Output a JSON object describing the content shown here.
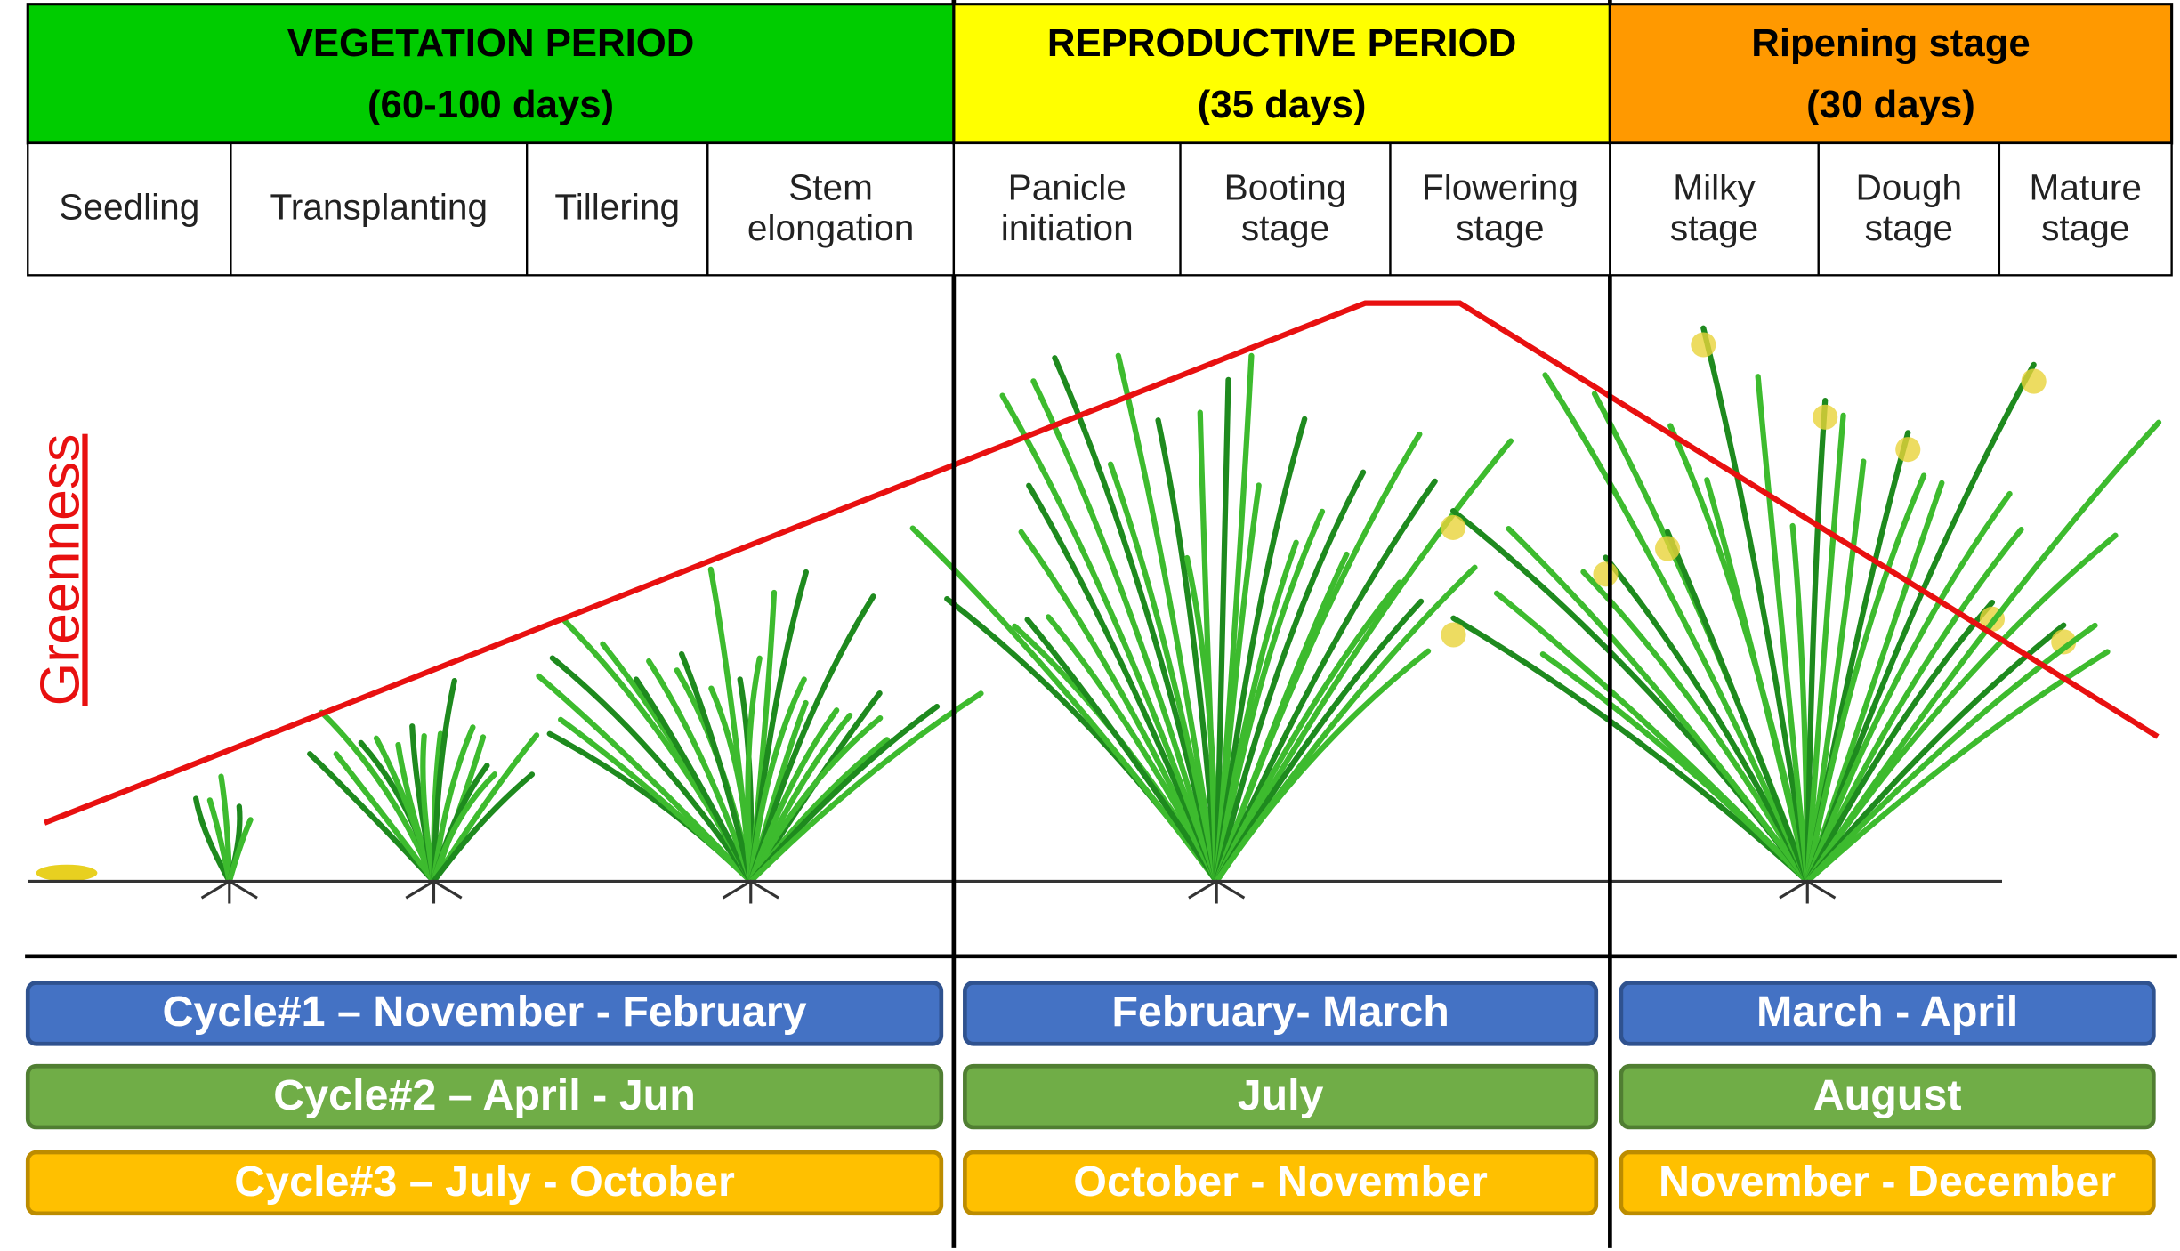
{
  "periods": [
    {
      "title": "VEGETATION PERIOD",
      "duration": "(60-100 days)",
      "stages": [
        [
          "Seedling"
        ],
        [
          "Transplanting"
        ],
        [
          "Tillering"
        ],
        [
          "Stem",
          "elongation"
        ]
      ]
    },
    {
      "title": "REPRODUCTIVE PERIOD",
      "duration": "(35 days)",
      "stages": [
        [
          "Panicle",
          "initiation"
        ],
        [
          "Booting",
          "stage"
        ],
        [
          "Flowering",
          "stage"
        ]
      ]
    },
    {
      "title": "Ripening stage",
      "duration": "(30 days)",
      "stages": [
        [
          "Milky",
          "stage"
        ],
        [
          "Dough",
          "stage"
        ],
        [
          "Mature",
          "stage"
        ]
      ]
    }
  ],
  "axis_label": "Greenness",
  "cycles": [
    [
      "Cycle#1 – November - February",
      "February- March",
      "March - April"
    ],
    [
      "Cycle#2 – April - Jun",
      "July",
      "August"
    ],
    [
      "Cycle#3 – July - October",
      "October - November",
      "November - December"
    ]
  ]
}
